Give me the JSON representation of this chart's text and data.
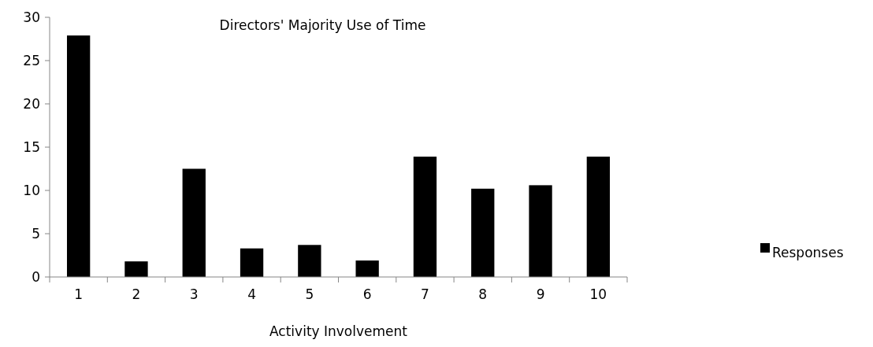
{
  "chart_data": {
    "type": "bar",
    "title": "Directors' Majority Use of Time",
    "xlabel": "Activity Involvement",
    "categories": [
      "1",
      "2",
      "3",
      "4",
      "5",
      "6",
      "7",
      "8",
      "9",
      "10"
    ],
    "series": [
      {
        "name": "Responses",
        "color": "#000000",
        "values": [
          27.9,
          1.8,
          12.5,
          3.3,
          3.7,
          1.9,
          13.9,
          10.2,
          10.6,
          13.9
        ]
      }
    ],
    "ylim": [
      0,
      30
    ],
    "yticks": [
      0,
      5,
      10,
      15,
      20,
      25,
      30
    ],
    "grid": false,
    "legend": "right"
  }
}
